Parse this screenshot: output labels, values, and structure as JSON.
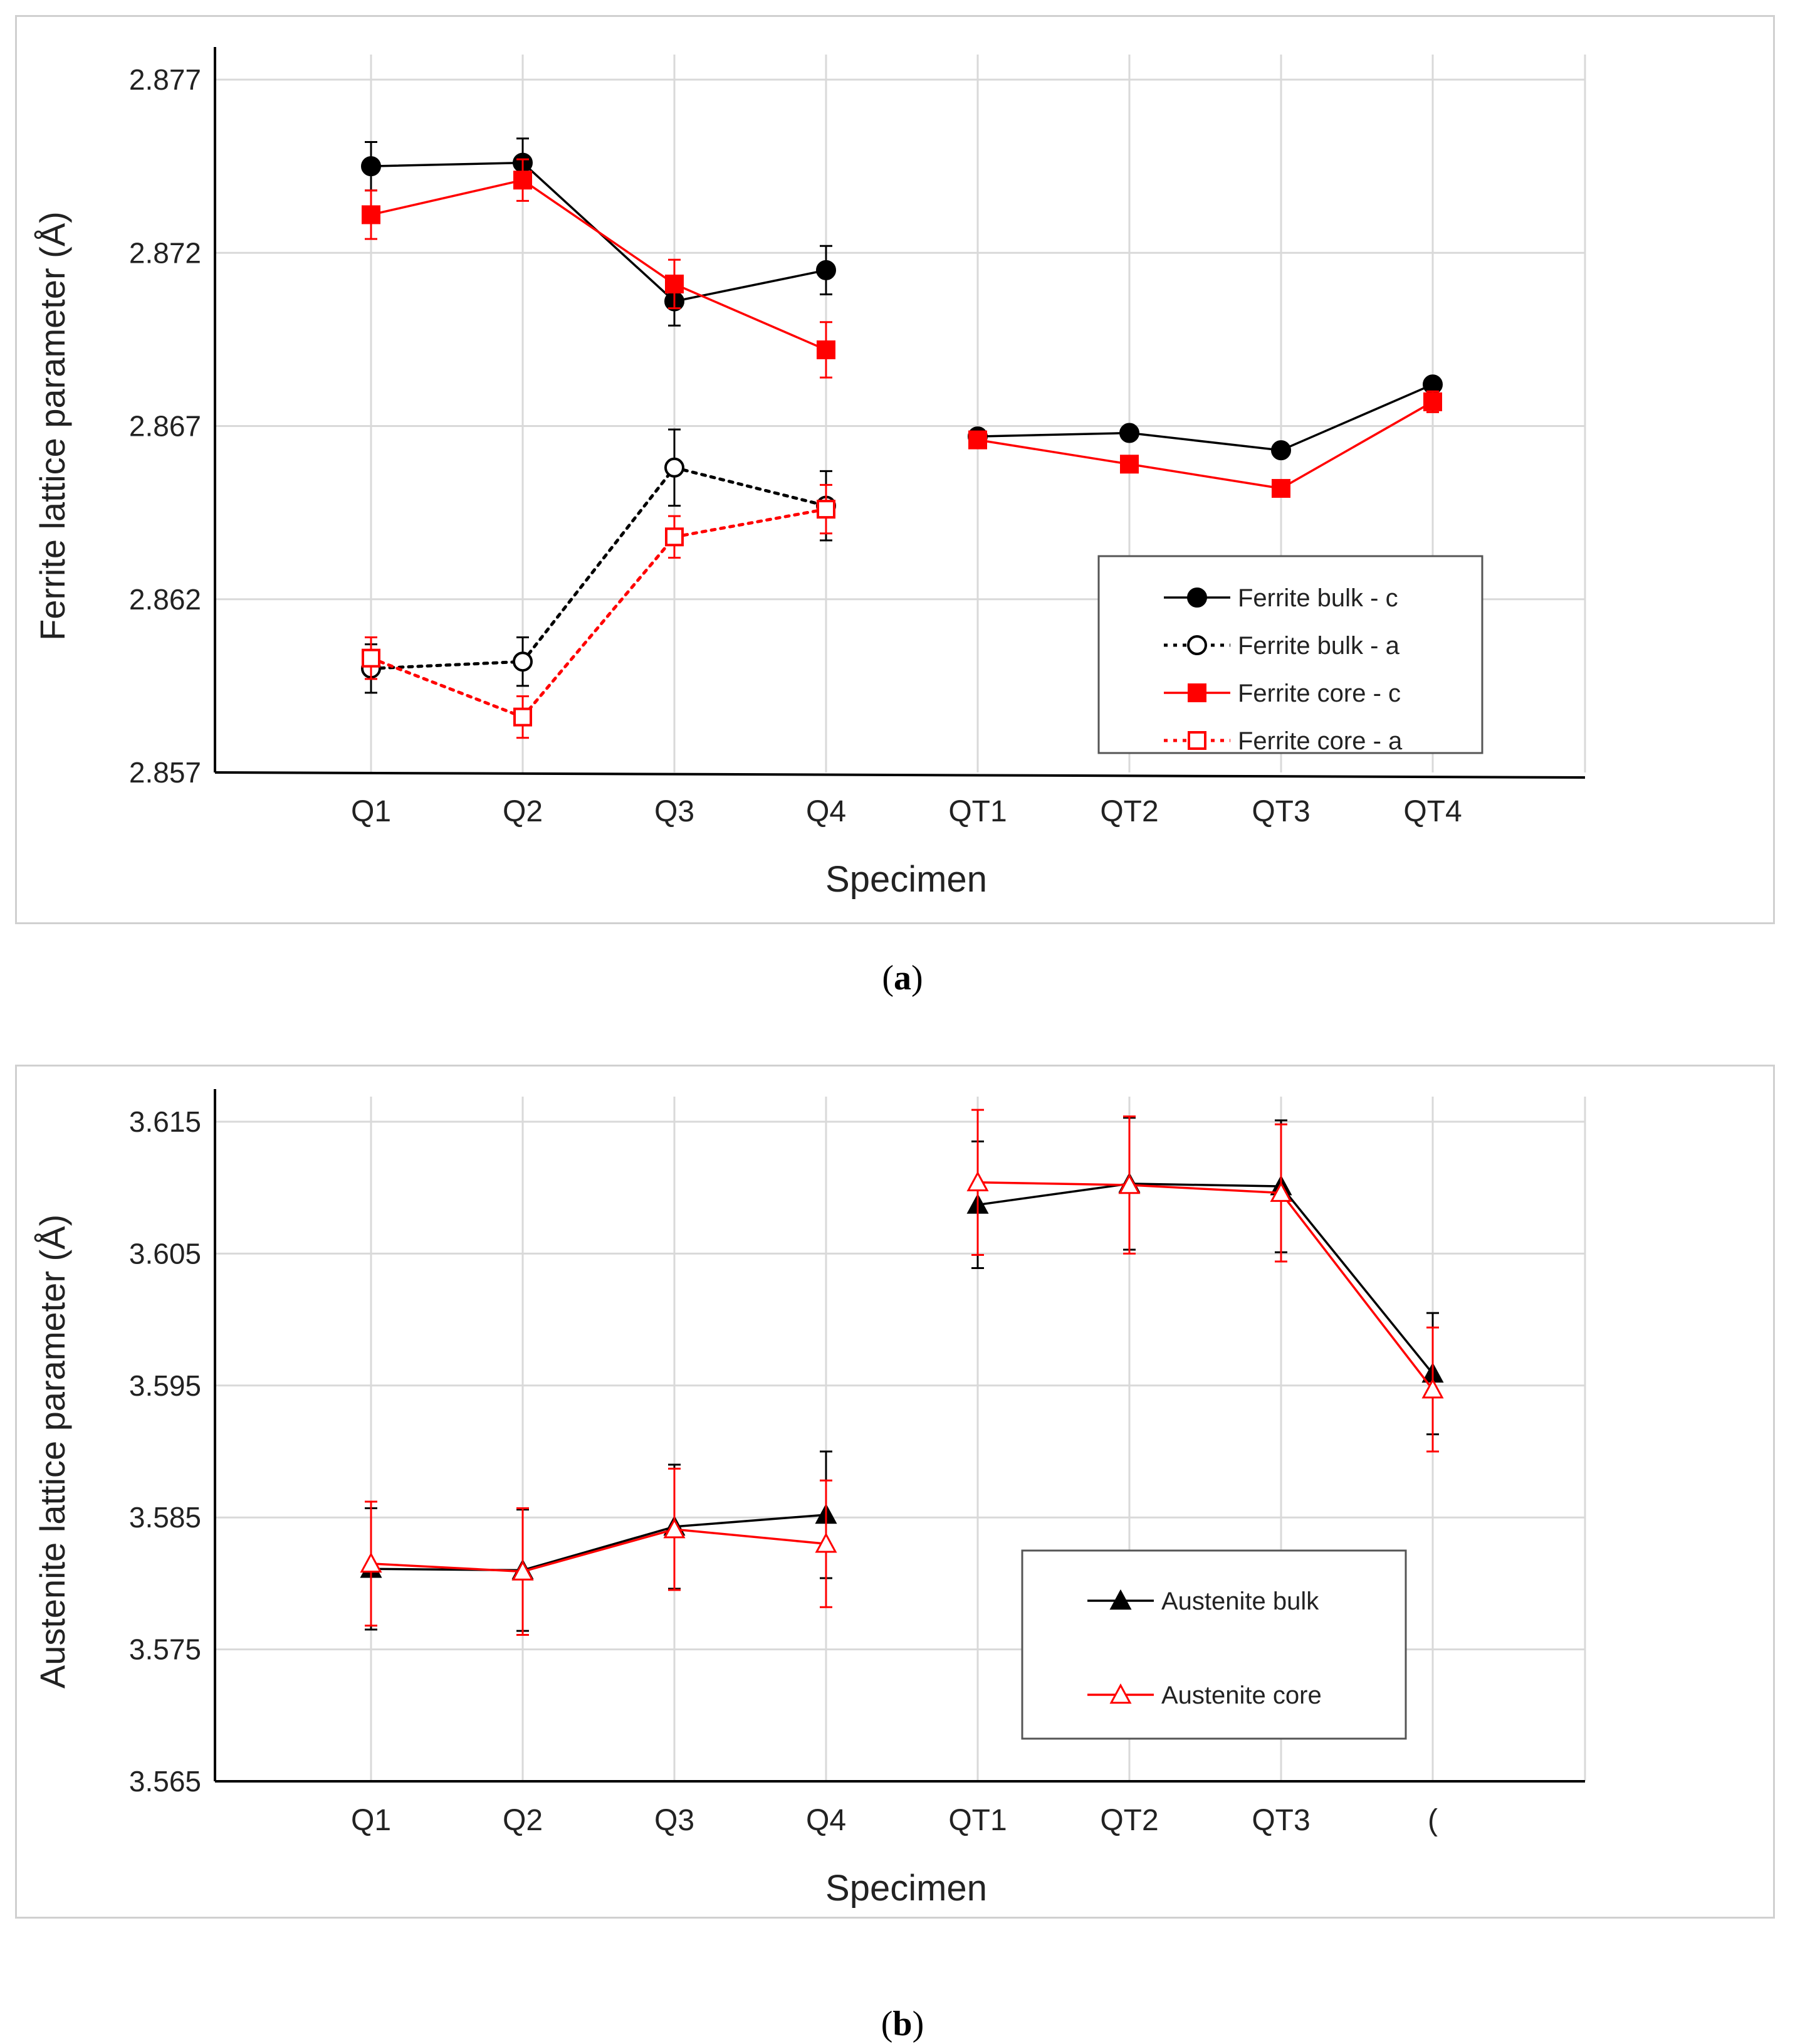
{
  "chart_data": [
    {
      "type": "line",
      "panel": "a",
      "caption": "a",
      "xlabel": "Specimen",
      "ylabel": "Ferrite lattice parameter (Å)",
      "ylim": [
        2.857,
        2.877
      ],
      "yticks": [
        "2.857",
        "2.862",
        "2.867",
        "2.872",
        "2.877"
      ],
      "categories": [
        "Q1",
        "Q2",
        "Q3",
        "Q4",
        "QT1",
        "QT2",
        "QT3",
        "QT4"
      ],
      "legend_position": "bottom-right",
      "series": [
        {
          "name": "Ferrite bulk - c",
          "color": "#000000",
          "marker": "filled-circle",
          "dash": "solid",
          "values": [
            2.8745,
            2.8746,
            2.8706,
            2.8715,
            2.8667,
            2.8668,
            2.8663,
            2.8682
          ],
          "errors": [
            0.0007,
            0.0007,
            0.0007,
            0.0007,
            0.0,
            0.0,
            0.0,
            0.0
          ]
        },
        {
          "name": "Ferrite bulk - a",
          "color": "#000000",
          "marker": "open-circle",
          "dash": "dotted",
          "values": [
            2.86,
            2.8602,
            2.8658,
            2.8647,
            null,
            null,
            null,
            null
          ],
          "errors": [
            0.0007,
            0.0007,
            0.0011,
            0.001,
            null,
            null,
            null,
            null
          ]
        },
        {
          "name": "Ferrite core - c",
          "color": "#ff0000",
          "marker": "filled-square",
          "dash": "solid",
          "values": [
            2.8731,
            2.8741,
            2.8711,
            2.8692,
            2.8666,
            2.8659,
            2.8652,
            2.8677
          ],
          "errors": [
            0.0007,
            0.0006,
            0.0007,
            0.0008,
            0.0,
            0.0,
            0.0,
            0.0003
          ]
        },
        {
          "name": "Ferrite core - a",
          "color": "#ff0000",
          "marker": "open-square",
          "dash": "dotted",
          "values": [
            2.8603,
            2.8586,
            2.8638,
            2.8646,
            null,
            null,
            null,
            null
          ],
          "errors": [
            0.0006,
            0.0006,
            0.0006,
            0.0007,
            null,
            null,
            null,
            null
          ]
        }
      ]
    },
    {
      "type": "line",
      "panel": "b",
      "caption": "b",
      "xlabel": "Specimen",
      "ylabel": "Austenite lattice parameter (Å)",
      "ylim": [
        3.565,
        3.615
      ],
      "yticks": [
        "3.565",
        "3.575",
        "3.585",
        "3.595",
        "3.605",
        "3.615"
      ],
      "categories": [
        "Q1",
        "Q2",
        "Q3",
        "Q4",
        "QT1",
        "QT2",
        "QT3",
        "("
      ],
      "legend_position": "bottom-right",
      "series": [
        {
          "name": "Austenite bulk",
          "color": "#000000",
          "marker": "filled-triangle",
          "dash": "solid",
          "values": [
            3.5811,
            3.581,
            3.5843,
            3.5852,
            3.6087,
            3.6103,
            3.6101,
            3.5959
          ],
          "errors": [
            0.0046,
            0.0046,
            0.0047,
            0.0048,
            0.0048,
            0.005,
            0.005,
            0.0046
          ]
        },
        {
          "name": "Austenite core",
          "color": "#ff0000",
          "marker": "open-triangle",
          "dash": "solid",
          "values": [
            3.5815,
            3.5809,
            3.5841,
            3.583,
            3.6104,
            3.6102,
            3.6096,
            3.5947
          ],
          "errors": [
            0.0047,
            0.0048,
            0.0046,
            0.0048,
            0.0055,
            0.0052,
            0.0052,
            0.0047
          ]
        }
      ]
    }
  ]
}
